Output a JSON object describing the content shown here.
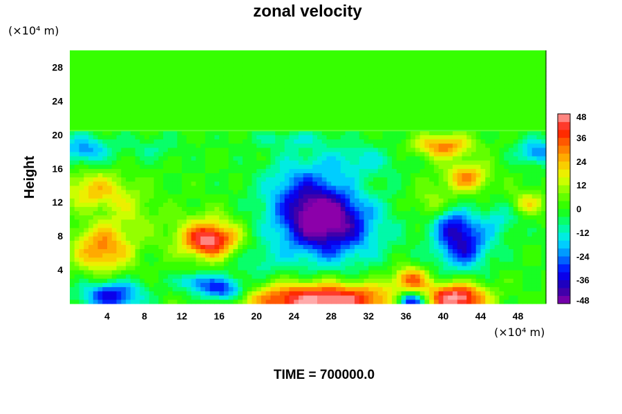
{
  "chart_data": {
    "type": "heatmap",
    "title": "zonal velocity",
    "ylabel": "Height",
    "x_unit_label": "(×10⁴ m)",
    "y_unit_label": "(×10⁴ m)",
    "footer": "TIME = 700000.0",
    "xlim": [
      0,
      51
    ],
    "ylim": [
      0,
      30
    ],
    "x_ticks": [
      4,
      8,
      12,
      16,
      20,
      24,
      28,
      32,
      36,
      40,
      44,
      48
    ],
    "y_ticks": [
      4,
      8,
      12,
      16,
      20,
      24,
      28
    ],
    "colorbar": {
      "min": -48,
      "max": 48,
      "step": 4,
      "tick_labels": [
        48,
        36,
        24,
        12,
        0,
        -12,
        -24,
        -36,
        -48
      ]
    },
    "features": [
      {
        "x": 27.5,
        "y": 9.0,
        "sx": 4.0,
        "sy": 3.0,
        "amp": -36
      },
      {
        "x": 27.0,
        "y": 10.5,
        "sx": 2.6,
        "sy": 2.0,
        "amp": -22
      },
      {
        "x": 25.0,
        "y": 14.0,
        "sx": 3.0,
        "sy": 2.5,
        "amp": -20
      },
      {
        "x": 31.0,
        "y": 17.0,
        "sx": 3.0,
        "sy": 1.4,
        "amp": -12
      },
      {
        "x": 3.5,
        "y": 6.5,
        "sx": 2.2,
        "sy": 2.0,
        "amp": 30
      },
      {
        "x": 2.5,
        "y": 13.5,
        "sx": 2.5,
        "sy": 1.5,
        "amp": 22
      },
      {
        "x": 6.5,
        "y": 11.0,
        "sx": 2.0,
        "sy": 2.0,
        "amp": 10
      },
      {
        "x": 15.0,
        "y": 7.5,
        "sx": 2.0,
        "sy": 1.4,
        "amp": 40
      },
      {
        "x": 14.5,
        "y": 8.5,
        "sx": 3.0,
        "sy": 2.0,
        "amp": 10
      },
      {
        "x": 42.0,
        "y": 7.0,
        "sx": 2.0,
        "sy": 2.0,
        "amp": -35
      },
      {
        "x": 41.0,
        "y": 9.5,
        "sx": 1.5,
        "sy": 1.2,
        "amp": -20
      },
      {
        "x": 40.0,
        "y": 18.7,
        "sx": 2.2,
        "sy": 1.0,
        "amp": 30
      },
      {
        "x": 42.5,
        "y": 15.0,
        "sx": 1.7,
        "sy": 1.2,
        "amp": 28
      },
      {
        "x": 50.0,
        "y": 18.0,
        "sx": 1.4,
        "sy": 1.0,
        "amp": -25
      },
      {
        "x": 49.0,
        "y": 12.0,
        "sx": 1.3,
        "sy": 1.0,
        "amp": 18
      },
      {
        "x": 27.0,
        "y": 0.5,
        "sx": 6.0,
        "sy": 1.4,
        "amp": 50
      },
      {
        "x": 36.5,
        "y": 3.0,
        "sx": 1.3,
        "sy": 1.0,
        "amp": 30
      },
      {
        "x": 41.5,
        "y": 0.7,
        "sx": 2.2,
        "sy": 1.2,
        "amp": 48
      },
      {
        "x": 36.5,
        "y": 0.3,
        "sx": 1.2,
        "sy": 0.8,
        "amp": -48
      },
      {
        "x": 4.5,
        "y": 1.0,
        "sx": 2.2,
        "sy": 1.2,
        "amp": -35
      },
      {
        "x": 16.5,
        "y": 1.6,
        "sx": 1.8,
        "sy": 1.0,
        "amp": -35
      },
      {
        "x": 13.5,
        "y": 2.6,
        "sx": 1.4,
        "sy": 0.8,
        "amp": -20
      },
      {
        "x": 1.5,
        "y": 18.3,
        "sx": 2.0,
        "sy": 1.2,
        "amp": -22
      },
      {
        "x": 24.0,
        "y": 19.5,
        "sx": 3.0,
        "sy": 0.8,
        "amp": -10
      },
      {
        "x": 9.0,
        "y": 18.5,
        "sx": 2.0,
        "sy": 1.0,
        "amp": -8
      },
      {
        "x": 38.5,
        "y": 12.0,
        "sx": 1.5,
        "sy": 1.5,
        "amp": 10
      },
      {
        "x": 46.0,
        "y": 10.0,
        "sx": 1.5,
        "sy": 1.5,
        "amp": -12
      },
      {
        "x": 20.0,
        "y": 5.0,
        "sx": 2.0,
        "sy": 1.5,
        "amp": -8
      }
    ],
    "upper_layer": {
      "y_from": 20.5,
      "value": 0
    }
  }
}
